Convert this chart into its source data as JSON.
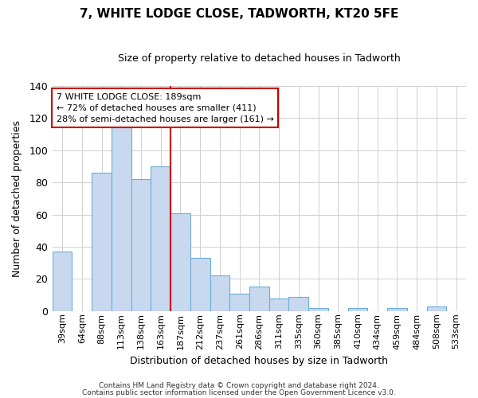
{
  "title": "7, WHITE LODGE CLOSE, TADWORTH, KT20 5FE",
  "subtitle": "Size of property relative to detached houses in Tadworth",
  "xlabel": "Distribution of detached houses by size in Tadworth",
  "ylabel": "Number of detached properties",
  "bar_color": "#c8d9ef",
  "bar_edge_color": "#6baed6",
  "categories": [
    "39sqm",
    "64sqm",
    "88sqm",
    "113sqm",
    "138sqm",
    "163sqm",
    "187sqm",
    "212sqm",
    "237sqm",
    "261sqm",
    "286sqm",
    "311sqm",
    "335sqm",
    "360sqm",
    "385sqm",
    "410sqm",
    "434sqm",
    "459sqm",
    "484sqm",
    "508sqm",
    "533sqm"
  ],
  "values": [
    37,
    0,
    86,
    118,
    82,
    90,
    61,
    33,
    22,
    11,
    15,
    8,
    9,
    2,
    0,
    2,
    0,
    2,
    0,
    3,
    0
  ],
  "vline_color": "#cc0000",
  "vline_index": 6,
  "ylim": [
    0,
    140
  ],
  "yticks": [
    0,
    20,
    40,
    60,
    80,
    100,
    120,
    140
  ],
  "annotation_line1": "7 WHITE LODGE CLOSE: 189sqm",
  "annotation_line2": "← 72% of detached houses are smaller (411)",
  "annotation_line3": "28% of semi-detached houses are larger (161) →",
  "annotation_box_color": "#ffffff",
  "annotation_box_edge_color": "#cc0000",
  "footer1": "Contains HM Land Registry data © Crown copyright and database right 2024.",
  "footer2": "Contains public sector information licensed under the Open Government Licence v3.0.",
  "background_color": "#ffffff",
  "grid_color": "#d0d0d0"
}
